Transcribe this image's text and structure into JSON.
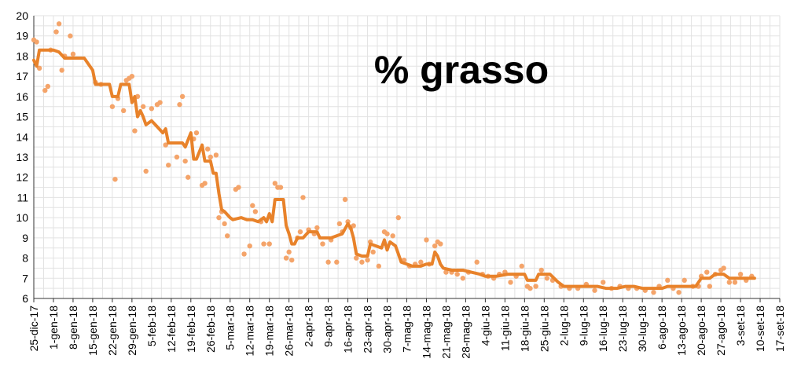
{
  "colors": {
    "trend_line": "#e8822a",
    "measure_points": "#f4a46a",
    "grid": "#e2e2e2",
    "axis": "#333333"
  },
  "chart_data": {
    "type": "line",
    "title": "% grasso",
    "xlabel": "",
    "ylabel": "",
    "grid": true,
    "legend": "none",
    "x_axis_type": "date",
    "xlim": [
      "2017-12-25",
      "2018-09-17"
    ],
    "ylim": [
      6,
      20
    ],
    "y_ticks": [
      6,
      7,
      8,
      9,
      10,
      11,
      12,
      13,
      14,
      15,
      16,
      17,
      18,
      19,
      20
    ],
    "x_tick_labels": [
      "25-dic-17",
      "1-gen-18",
      "8-gen-18",
      "15-gen-18",
      "22-gen-18",
      "29-gen-18",
      "5-feb-18",
      "12-feb-18",
      "19-feb-18",
      "26-feb-18",
      "5-mar-18",
      "12-mar-18",
      "19-mar-18",
      "26-mar-18",
      "2-apr-18",
      "9-apr-18",
      "16-apr-18",
      "23-apr-18",
      "30-apr-18",
      "7-mag-18",
      "14-mag-18",
      "21-mag-18",
      "28-mag-18",
      "4-giu-18",
      "11-giu-18",
      "18-giu-18",
      "25-giu-18",
      "2-lug-18",
      "9-lug-18",
      "16-lug-18",
      "23-lug-18",
      "30-lug-18",
      "6-ago-18",
      "13-ago-18",
      "20-ago-18",
      "27-ago-18",
      "3-set-18",
      "10-set-18",
      "17-set-18"
    ],
    "series": [
      {
        "kind": "line",
        "values": [
          [
            "2017-12-25",
            17.8
          ],
          [
            "2017-12-26",
            17.5
          ],
          [
            "2017-12-27",
            18.3
          ],
          [
            "2017-12-30",
            18.3
          ],
          [
            "2018-01-01",
            18.3
          ],
          [
            "2018-01-03",
            18.2
          ],
          [
            "2018-01-05",
            17.9
          ],
          [
            "2018-01-08",
            17.9
          ],
          [
            "2018-01-12",
            17.9
          ],
          [
            "2018-01-15",
            17.3
          ],
          [
            "2018-01-16",
            16.6
          ],
          [
            "2018-01-18",
            16.6
          ],
          [
            "2018-01-21",
            16.6
          ],
          [
            "2018-01-22",
            16.0
          ],
          [
            "2018-01-24",
            16.0
          ],
          [
            "2018-01-25",
            16.6
          ],
          [
            "2018-01-26",
            16.6
          ],
          [
            "2018-01-28",
            16.6
          ],
          [
            "2018-01-29",
            15.7
          ],
          [
            "2018-01-30",
            16.0
          ],
          [
            "2018-01-31",
            15.0
          ],
          [
            "2018-02-01",
            15.3
          ],
          [
            "2018-02-02",
            15.0
          ],
          [
            "2018-02-03",
            14.6
          ],
          [
            "2018-02-05",
            14.8
          ],
          [
            "2018-02-07",
            14.5
          ],
          [
            "2018-02-09",
            14.2
          ],
          [
            "2018-02-10",
            14.4
          ],
          [
            "2018-02-11",
            13.7
          ],
          [
            "2018-02-13",
            13.7
          ],
          [
            "2018-02-16",
            13.7
          ],
          [
            "2018-02-17",
            13.5
          ],
          [
            "2018-02-19",
            14.2
          ],
          [
            "2018-02-20",
            12.9
          ],
          [
            "2018-02-21",
            12.9
          ],
          [
            "2018-02-23",
            13.6
          ],
          [
            "2018-02-24",
            12.8
          ],
          [
            "2018-02-26",
            12.8
          ],
          [
            "2018-02-27",
            12.2
          ],
          [
            "2018-02-28",
            12.2
          ],
          [
            "2018-03-01",
            11.2
          ],
          [
            "2018-03-02",
            10.4
          ],
          [
            "2018-03-03",
            10.3
          ],
          [
            "2018-03-05",
            10.0
          ],
          [
            "2018-03-06",
            9.9
          ],
          [
            "2018-03-09",
            10.0
          ],
          [
            "2018-03-11",
            9.9
          ],
          [
            "2018-03-13",
            9.9
          ],
          [
            "2018-03-15",
            9.8
          ],
          [
            "2018-03-17",
            10.0
          ],
          [
            "2018-03-18",
            9.8
          ],
          [
            "2018-03-19",
            10.2
          ],
          [
            "2018-03-20",
            9.8
          ],
          [
            "2018-03-21",
            10.9
          ],
          [
            "2018-03-24",
            10.9
          ],
          [
            "2018-03-25",
            9.6
          ],
          [
            "2018-03-26",
            9.2
          ],
          [
            "2018-03-27",
            8.7
          ],
          [
            "2018-03-28",
            8.7
          ],
          [
            "2018-03-29",
            9.0
          ],
          [
            "2018-03-31",
            9.0
          ],
          [
            "2018-04-02",
            9.3
          ],
          [
            "2018-04-05",
            9.3
          ],
          [
            "2018-04-06",
            9.0
          ],
          [
            "2018-04-08",
            9.0
          ],
          [
            "2018-04-10",
            9.0
          ],
          [
            "2018-04-12",
            9.1
          ],
          [
            "2018-04-14",
            9.2
          ],
          [
            "2018-04-16",
            9.7
          ],
          [
            "2018-04-17",
            9.5
          ],
          [
            "2018-04-18",
            9.0
          ],
          [
            "2018-04-19",
            8.2
          ],
          [
            "2018-04-21",
            8.1
          ],
          [
            "2018-04-23",
            8.1
          ],
          [
            "2018-04-24",
            8.7
          ],
          [
            "2018-04-26",
            8.6
          ],
          [
            "2018-04-28",
            8.5
          ],
          [
            "2018-04-29",
            8.9
          ],
          [
            "2018-04-30",
            8.4
          ],
          [
            "2018-05-01",
            8.8
          ],
          [
            "2018-05-03",
            8.6
          ],
          [
            "2018-05-05",
            7.8
          ],
          [
            "2018-05-07",
            7.7
          ],
          [
            "2018-05-09",
            7.6
          ],
          [
            "2018-05-12",
            7.6
          ],
          [
            "2018-05-14",
            7.7
          ],
          [
            "2018-05-16",
            7.7
          ],
          [
            "2018-05-17",
            8.3
          ],
          [
            "2018-05-18",
            8.1
          ],
          [
            "2018-05-19",
            7.7
          ],
          [
            "2018-05-20",
            7.5
          ],
          [
            "2018-05-23",
            7.4
          ],
          [
            "2018-05-27",
            7.4
          ],
          [
            "2018-05-30",
            7.3
          ],
          [
            "2018-06-02",
            7.2
          ],
          [
            "2018-06-04",
            7.1
          ],
          [
            "2018-06-08",
            7.1
          ],
          [
            "2018-06-12",
            7.2
          ],
          [
            "2018-06-15",
            7.2
          ],
          [
            "2018-06-18",
            7.2
          ],
          [
            "2018-06-19",
            6.9
          ],
          [
            "2018-06-22",
            6.9
          ],
          [
            "2018-06-23",
            7.2
          ],
          [
            "2018-06-27",
            7.2
          ],
          [
            "2018-06-30",
            6.8
          ],
          [
            "2018-07-02",
            6.6
          ],
          [
            "2018-07-06",
            6.6
          ],
          [
            "2018-07-10",
            6.6
          ],
          [
            "2018-07-14",
            6.6
          ],
          [
            "2018-07-17",
            6.5
          ],
          [
            "2018-07-21",
            6.5
          ],
          [
            "2018-07-24",
            6.6
          ],
          [
            "2018-07-27",
            6.6
          ],
          [
            "2018-07-30",
            6.5
          ],
          [
            "2018-08-02",
            6.5
          ],
          [
            "2018-08-06",
            6.5
          ],
          [
            "2018-08-08",
            6.6
          ],
          [
            "2018-08-11",
            6.6
          ],
          [
            "2018-08-15",
            6.6
          ],
          [
            "2018-08-18",
            6.6
          ],
          [
            "2018-08-20",
            7.0
          ],
          [
            "2018-08-23",
            7.0
          ],
          [
            "2018-08-25",
            7.2
          ],
          [
            "2018-08-28",
            7.2
          ],
          [
            "2018-08-30",
            7.0
          ],
          [
            "2018-09-02",
            7.0
          ],
          [
            "2018-09-05",
            7.0
          ],
          [
            "2018-09-08",
            7.0
          ]
        ]
      },
      {
        "kind": "scatter",
        "values": [
          [
            "2017-12-25",
            18.8
          ],
          [
            "2017-12-26",
            18.7
          ],
          [
            "2017-12-27",
            17.4
          ],
          [
            "2017-12-29",
            16.3
          ],
          [
            "2017-12-30",
            16.5
          ],
          [
            "2017-12-31",
            18.3
          ],
          [
            "2018-01-02",
            19.2
          ],
          [
            "2018-01-03",
            19.6
          ],
          [
            "2018-01-04",
            17.3
          ],
          [
            "2018-01-05",
            18.0
          ],
          [
            "2018-01-07",
            19.0
          ],
          [
            "2018-01-08",
            18.1
          ],
          [
            "2018-01-16",
            16.7
          ],
          [
            "2018-01-18",
            16.6
          ],
          [
            "2018-01-22",
            15.5
          ],
          [
            "2018-01-23",
            11.9
          ],
          [
            "2018-01-24",
            15.9
          ],
          [
            "2018-01-26",
            15.3
          ],
          [
            "2018-01-27",
            16.8
          ],
          [
            "2018-01-28",
            16.9
          ],
          [
            "2018-01-29",
            17.0
          ],
          [
            "2018-01-30",
            14.3
          ],
          [
            "2018-01-31",
            16.0
          ],
          [
            "2018-02-02",
            15.5
          ],
          [
            "2018-02-03",
            12.3
          ],
          [
            "2018-02-05",
            15.4
          ],
          [
            "2018-02-07",
            15.6
          ],
          [
            "2018-02-08",
            15.7
          ],
          [
            "2018-02-10",
            13.6
          ],
          [
            "2018-02-11",
            12.6
          ],
          [
            "2018-02-14",
            13.0
          ],
          [
            "2018-02-15",
            15.6
          ],
          [
            "2018-02-16",
            16.0
          ],
          [
            "2018-02-17",
            12.8
          ],
          [
            "2018-02-18",
            12.0
          ],
          [
            "2018-02-20",
            13.9
          ],
          [
            "2018-02-21",
            14.2
          ],
          [
            "2018-02-23",
            11.6
          ],
          [
            "2018-02-24",
            11.7
          ],
          [
            "2018-02-25",
            13.4
          ],
          [
            "2018-02-26",
            13.0
          ],
          [
            "2018-02-28",
            13.1
          ],
          [
            "2018-03-01",
            10.0
          ],
          [
            "2018-03-02",
            10.3
          ],
          [
            "2018-03-03",
            9.7
          ],
          [
            "2018-03-04",
            9.1
          ],
          [
            "2018-03-07",
            11.4
          ],
          [
            "2018-03-08",
            11.5
          ],
          [
            "2018-03-10",
            8.2
          ],
          [
            "2018-03-12",
            8.6
          ],
          [
            "2018-03-13",
            10.6
          ],
          [
            "2018-03-14",
            10.3
          ],
          [
            "2018-03-16",
            9.8
          ],
          [
            "2018-03-17",
            8.7
          ],
          [
            "2018-03-19",
            8.7
          ],
          [
            "2018-03-21",
            11.7
          ],
          [
            "2018-03-22",
            11.5
          ],
          [
            "2018-03-23",
            11.5
          ],
          [
            "2018-03-25",
            8.0
          ],
          [
            "2018-03-26",
            8.3
          ],
          [
            "2018-03-27",
            7.9
          ],
          [
            "2018-03-29",
            9.0
          ],
          [
            "2018-03-30",
            9.3
          ],
          [
            "2018-03-31",
            11.0
          ],
          [
            "2018-04-02",
            9.4
          ],
          [
            "2018-04-04",
            9.2
          ],
          [
            "2018-04-05",
            9.5
          ],
          [
            "2018-04-07",
            8.7
          ],
          [
            "2018-04-09",
            7.8
          ],
          [
            "2018-04-10",
            8.9
          ],
          [
            "2018-04-12",
            7.8
          ],
          [
            "2018-04-13",
            9.7
          ],
          [
            "2018-04-14",
            9.3
          ],
          [
            "2018-04-15",
            10.9
          ],
          [
            "2018-04-16",
            9.8
          ],
          [
            "2018-04-17",
            9.5
          ],
          [
            "2018-04-18",
            9.6
          ],
          [
            "2018-04-19",
            8.0
          ],
          [
            "2018-04-21",
            7.8
          ],
          [
            "2018-04-23",
            7.9
          ],
          [
            "2018-04-24",
            8.8
          ],
          [
            "2018-04-25",
            8.3
          ],
          [
            "2018-04-27",
            7.6
          ],
          [
            "2018-04-29",
            9.3
          ],
          [
            "2018-04-30",
            9.2
          ],
          [
            "2018-05-02",
            9.1
          ],
          [
            "2018-05-04",
            10.0
          ],
          [
            "2018-05-06",
            7.9
          ],
          [
            "2018-05-08",
            7.6
          ],
          [
            "2018-05-10",
            7.7
          ],
          [
            "2018-05-12",
            7.8
          ],
          [
            "2018-05-14",
            8.9
          ],
          [
            "2018-05-15",
            7.7
          ],
          [
            "2018-05-17",
            8.6
          ],
          [
            "2018-05-18",
            8.8
          ],
          [
            "2018-05-19",
            8.7
          ],
          [
            "2018-05-21",
            7.3
          ],
          [
            "2018-05-23",
            7.3
          ],
          [
            "2018-05-25",
            7.2
          ],
          [
            "2018-05-27",
            7.0
          ],
          [
            "2018-05-29",
            7.3
          ],
          [
            "2018-06-01",
            7.8
          ],
          [
            "2018-06-03",
            7.2
          ],
          [
            "2018-06-05",
            7.1
          ],
          [
            "2018-06-07",
            7.0
          ],
          [
            "2018-06-09",
            7.2
          ],
          [
            "2018-06-11",
            7.3
          ],
          [
            "2018-06-13",
            6.8
          ],
          [
            "2018-06-15",
            7.1
          ],
          [
            "2018-06-17",
            7.6
          ],
          [
            "2018-06-19",
            6.6
          ],
          [
            "2018-06-20",
            6.5
          ],
          [
            "2018-06-22",
            6.6
          ],
          [
            "2018-06-24",
            7.4
          ],
          [
            "2018-06-26",
            7.0
          ],
          [
            "2018-06-28",
            6.9
          ],
          [
            "2018-07-01",
            6.6
          ],
          [
            "2018-07-04",
            6.5
          ],
          [
            "2018-07-07",
            6.5
          ],
          [
            "2018-07-10",
            6.7
          ],
          [
            "2018-07-13",
            6.4
          ],
          [
            "2018-07-16",
            6.8
          ],
          [
            "2018-07-19",
            6.5
          ],
          [
            "2018-07-22",
            6.6
          ],
          [
            "2018-07-25",
            6.5
          ],
          [
            "2018-07-28",
            6.5
          ],
          [
            "2018-07-31",
            6.4
          ],
          [
            "2018-08-03",
            6.3
          ],
          [
            "2018-08-05",
            6.6
          ],
          [
            "2018-08-08",
            6.9
          ],
          [
            "2018-08-10",
            6.5
          ],
          [
            "2018-08-12",
            6.3
          ],
          [
            "2018-08-14",
            6.9
          ],
          [
            "2018-08-17",
            6.6
          ],
          [
            "2018-08-19",
            6.6
          ],
          [
            "2018-08-20",
            7.1
          ],
          [
            "2018-08-22",
            7.3
          ],
          [
            "2018-08-23",
            6.6
          ],
          [
            "2018-08-25",
            7.2
          ],
          [
            "2018-08-27",
            7.4
          ],
          [
            "2018-08-28",
            7.5
          ],
          [
            "2018-08-30",
            6.8
          ],
          [
            "2018-09-01",
            6.8
          ],
          [
            "2018-09-03",
            7.2
          ],
          [
            "2018-09-05",
            6.9
          ],
          [
            "2018-09-07",
            7.1
          ]
        ]
      }
    ]
  }
}
